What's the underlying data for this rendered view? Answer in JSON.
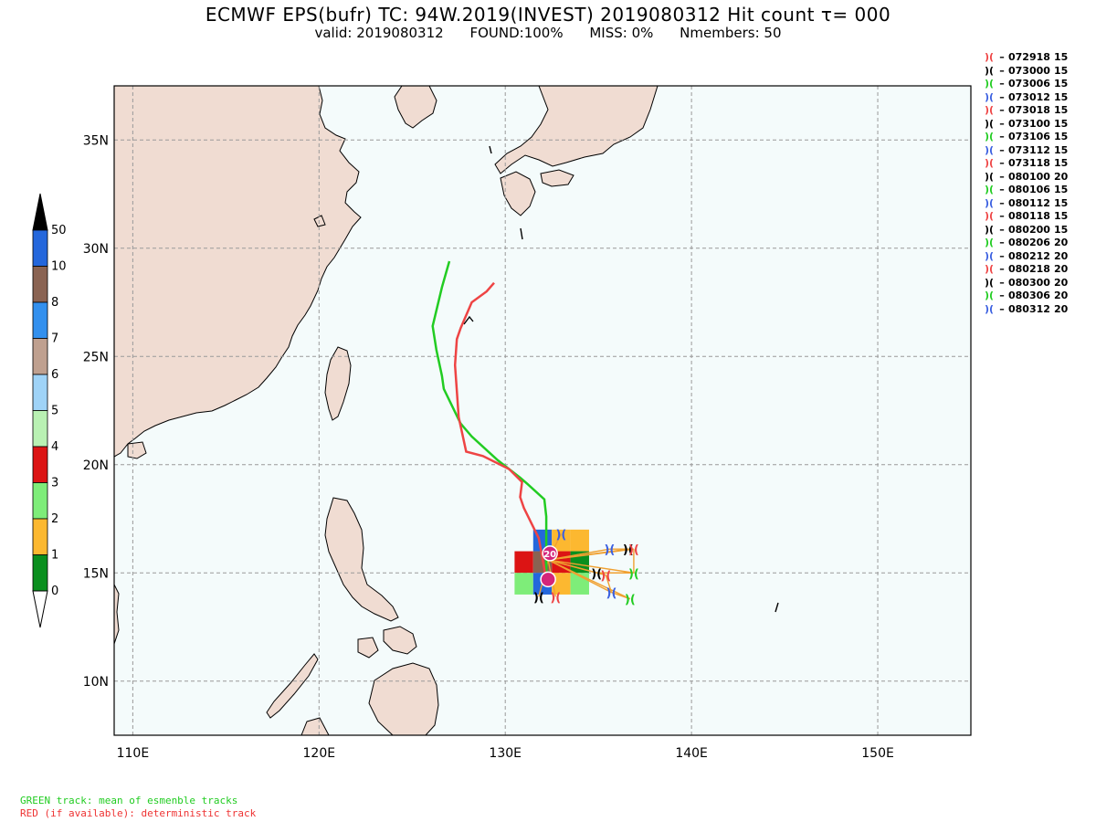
{
  "title": "ECMWF EPS(bufr) TC: 94W.2019(INVEST) 2019080312 Hit count  τ= 000",
  "subtitle": {
    "valid": "valid: 2019080312",
    "found": "FOUND:100%",
    "miss": "MISS:  0%",
    "nmembers": "Nmembers: 50"
  },
  "map": {
    "lon_range": [
      109,
      155
    ],
    "lat_range": [
      7.5,
      37.5
    ],
    "lon_ticks": [
      "110E",
      "120E",
      "130E",
      "140E",
      "150E"
    ],
    "lat_ticks": [
      "10N",
      "15N",
      "20N",
      "25N",
      "30N",
      "35N"
    ],
    "colors": {
      "ocean": "#f4fbfb",
      "land": "#f0dcd2",
      "grid": "#9a9a9a"
    }
  },
  "colorbar": {
    "labels": [
      "0",
      "1",
      "2",
      "3",
      "4",
      "5",
      "6",
      "7",
      "8",
      "10",
      "50"
    ],
    "colors": [
      "#0a8f1e",
      "#fcb830",
      "#7eed79",
      "#dc1414",
      "#b9f1b3",
      "#9fd3f7",
      "#bfa08f",
      "#3390ee",
      "#8a6352",
      "#2467dc"
    ]
  },
  "hit_cells": [
    {
      "lon": 132,
      "lat": 16.5,
      "count": "50"
    },
    {
      "lon": 133,
      "lat": 16.5,
      "count": "1"
    },
    {
      "lon": 134,
      "lat": 16.5,
      "count": "1"
    },
    {
      "lon": 131,
      "lat": 15.5,
      "count": "3"
    },
    {
      "lon": 132,
      "lat": 15.5,
      "count": "10"
    },
    {
      "lon": 133,
      "lat": 15.5,
      "count": "3"
    },
    {
      "lon": 134,
      "lat": 15.5,
      "count": "0"
    },
    {
      "lon": 131,
      "lat": 14.5,
      "count": "2"
    },
    {
      "lon": 132,
      "lat": 14.5,
      "count": "50"
    },
    {
      "lon": 133,
      "lat": 14.5,
      "count": "1"
    },
    {
      "lon": 134,
      "lat": 14.5,
      "count": "2"
    }
  ],
  "tracks": {
    "mean": {
      "label": "GREEN track: mean of esmenble tracks",
      "color": "#22cc22",
      "points": [
        [
          132.2,
          14.9
        ],
        [
          132.2,
          16.9
        ],
        [
          132.2,
          17.6
        ],
        [
          132.1,
          18.4
        ],
        [
          131.2,
          19.1
        ],
        [
          130.8,
          19.4
        ],
        [
          129.6,
          20.2
        ],
        [
          128.2,
          21.3
        ],
        [
          127.6,
          21.9
        ],
        [
          126.7,
          23.5
        ],
        [
          126.6,
          24.1
        ],
        [
          126.3,
          25.3
        ],
        [
          126.1,
          26.4
        ],
        [
          126.6,
          28.2
        ],
        [
          127.0,
          29.4
        ]
      ]
    },
    "deterministic": {
      "label": "RED (if available): deterministic track",
      "color": "#ee4444",
      "points": [
        [
          132.2,
          14.7
        ],
        [
          131.8,
          16.6
        ],
        [
          131.0,
          18.0
        ],
        [
          130.8,
          18.5
        ],
        [
          130.9,
          19.2
        ],
        [
          130.2,
          19.8
        ],
        [
          128.8,
          20.4
        ],
        [
          127.9,
          20.6
        ],
        [
          127.5,
          22.2
        ],
        [
          127.3,
          24.6
        ],
        [
          127.4,
          25.8
        ],
        [
          127.6,
          26.3
        ],
        [
          128.2,
          27.5
        ],
        [
          129.0,
          28.0
        ],
        [
          129.4,
          28.4
        ]
      ]
    }
  },
  "storm_markers": [
    {
      "lon": 132.4,
      "lat": 15.9,
      "label": "20"
    },
    {
      "lon": 132.3,
      "lat": 14.7,
      "label": ""
    }
  ],
  "members": [
    {
      "lon": 133.0,
      "lat": 16.8,
      "color": "#3a5fe0"
    },
    {
      "lon": 135.6,
      "lat": 16.1,
      "color": "#3a5fe0"
    },
    {
      "lon": 136.6,
      "lat": 16.1,
      "color": "#000000"
    },
    {
      "lon": 136.9,
      "lat": 16.1,
      "color": "#ee4444"
    },
    {
      "lon": 136.9,
      "lat": 15.0,
      "color": "#22cc22"
    },
    {
      "lon": 134.9,
      "lat": 15.0,
      "color": "#000000"
    },
    {
      "lon": 135.4,
      "lat": 14.9,
      "color": "#ee4444"
    },
    {
      "lon": 135.7,
      "lat": 14.1,
      "color": "#3a5fe0"
    },
    {
      "lon": 136.7,
      "lat": 13.8,
      "color": "#22cc22"
    },
    {
      "lon": 131.8,
      "lat": 13.9,
      "color": "#000000"
    },
    {
      "lon": 132.7,
      "lat": 13.9,
      "color": "#ee4444"
    }
  ],
  "legend": [
    {
      "date": "072918",
      "count": "15",
      "color": "#ee4444"
    },
    {
      "date": "073000",
      "count": "15",
      "color": "#000000"
    },
    {
      "date": "073006",
      "count": "15",
      "color": "#22cc22"
    },
    {
      "date": "073012",
      "count": "15",
      "color": "#3a5fe0"
    },
    {
      "date": "073018",
      "count": "15",
      "color": "#ee4444"
    },
    {
      "date": "073100",
      "count": "15",
      "color": "#000000"
    },
    {
      "date": "073106",
      "count": "15",
      "color": "#22cc22"
    },
    {
      "date": "073112",
      "count": "15",
      "color": "#3a5fe0"
    },
    {
      "date": "073118",
      "count": "15",
      "color": "#ee4444"
    },
    {
      "date": "080100",
      "count": "20",
      "color": "#000000"
    },
    {
      "date": "080106",
      "count": "15",
      "color": "#22cc22"
    },
    {
      "date": "080112",
      "count": "15",
      "color": "#3a5fe0"
    },
    {
      "date": "080118",
      "count": "15",
      "color": "#ee4444"
    },
    {
      "date": "080200",
      "count": "15",
      "color": "#000000"
    },
    {
      "date": "080206",
      "count": "20",
      "color": "#22cc22"
    },
    {
      "date": "080212",
      "count": "20",
      "color": "#3a5fe0"
    },
    {
      "date": "080218",
      "count": "20",
      "color": "#ee4444"
    },
    {
      "date": "080300",
      "count": "20",
      "color": "#000000"
    },
    {
      "date": "080306",
      "count": "20",
      "color": "#22cc22"
    },
    {
      "date": "080312",
      "count": "20",
      "color": "#3a5fe0"
    }
  ]
}
